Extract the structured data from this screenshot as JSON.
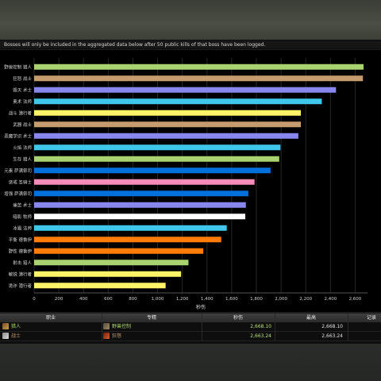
{
  "notice": "Bosses will only be included in the aggregated data below after 50 public kills of that boss have been logged.",
  "chart_data": {
    "type": "bar",
    "orientation": "horizontal",
    "xlabel": "秒伤",
    "xlim": [
      0,
      2700
    ],
    "ticks": [
      0,
      200,
      400,
      600,
      800,
      1000,
      1200,
      1400,
      1600,
      1800,
      2000,
      2200,
      2400,
      2600
    ],
    "tick_labels": [
      "0",
      "200",
      "400",
      "600",
      "800",
      "1,000",
      "1,200",
      "1,400",
      "1,600",
      "1,800",
      "2,000",
      "2,200",
      "2,400",
      "2,600"
    ],
    "grid": true,
    "bars": [
      {
        "label": "野兽控制 猎人",
        "value": 2668,
        "color": "#a9d271"
      },
      {
        "label": "狂怒 战士",
        "value": 2663,
        "color": "#c69b6d"
      },
      {
        "label": "毁灭 术士",
        "value": 2445,
        "color": "#8787ed"
      },
      {
        "label": "奥术 法师",
        "value": 2330,
        "color": "#3fc7eb"
      },
      {
        "label": "战斗 潜行者",
        "value": 2160,
        "color": "#fff468"
      },
      {
        "label": "武器 战士",
        "value": 2160,
        "color": "#c69b6d"
      },
      {
        "label": "恶魔学识 术士",
        "value": 2140,
        "color": "#8787ed"
      },
      {
        "label": "火焰 法师",
        "value": 1995,
        "color": "#3fc7eb"
      },
      {
        "label": "生存 猎人",
        "value": 1985,
        "color": "#a9d271"
      },
      {
        "label": "元素 萨满祭司",
        "value": 1915,
        "color": "#0070dd"
      },
      {
        "label": "惩戒 圣骑士",
        "value": 1785,
        "color": "#f48cba"
      },
      {
        "label": "增强 萨满祭司",
        "value": 1735,
        "color": "#0070dd"
      },
      {
        "label": "痛苦 术士",
        "value": 1715,
        "color": "#8787ed"
      },
      {
        "label": "暗影 牧师",
        "value": 1710,
        "color": "#ffffff"
      },
      {
        "label": "冰霜 法师",
        "value": 1560,
        "color": "#3fc7eb"
      },
      {
        "label": "平衡 德鲁伊",
        "value": 1515,
        "color": "#ff7c0a"
      },
      {
        "label": "野性 德鲁伊",
        "value": 1370,
        "color": "#ff7c0a"
      },
      {
        "label": "射击 猎人",
        "value": 1250,
        "color": "#a9d271"
      },
      {
        "label": "敏锐 潜行者",
        "value": 1190,
        "color": "#fff468"
      },
      {
        "label": "诡诈 潜行者",
        "value": 1065,
        "color": "#fff468"
      }
    ]
  },
  "table": {
    "headers": [
      "职业",
      "专精",
      "秒伤",
      "最高",
      "记录"
    ],
    "rows": [
      {
        "class": "猎人",
        "class_color": "#a9d271",
        "class_icon": "hunter-icon",
        "spec": "野兽控制",
        "spec_icon": "beast-mastery-icon",
        "dps": "2,668.10",
        "max": "2,668.10"
      },
      {
        "class": "战士",
        "class_color": "#c69b6d",
        "class_icon": "warrior-icon",
        "spec": "狂怒",
        "spec_icon": "fury-icon",
        "dps": "2,663.24",
        "max": "2,663.24"
      }
    ]
  }
}
